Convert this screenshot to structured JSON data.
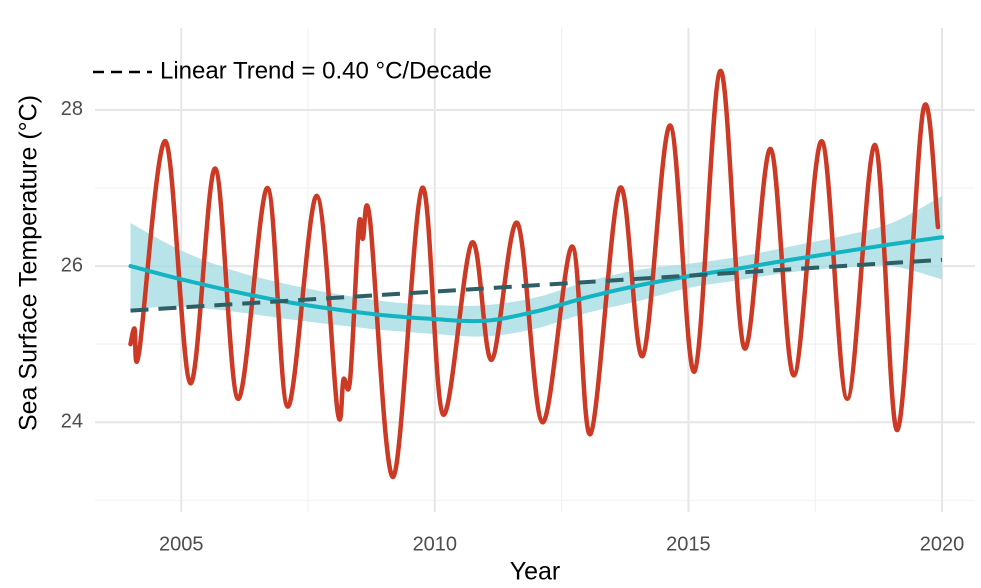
{
  "chart_data": {
    "type": "line",
    "xlabel": "Year",
    "ylabel": "Sea Surface Temperature (°C)",
    "xlim": [
      2003.3,
      2020.65
    ],
    "ylim": [
      22.85,
      29.05
    ],
    "xticks": [
      2005,
      2010,
      2015,
      2020
    ],
    "yticks": [
      24,
      26,
      28
    ],
    "minor_xticks": [
      2007.5,
      2012.5,
      2017.5
    ],
    "minor_yticks": [
      23,
      25,
      27
    ],
    "grid": true,
    "legend": "top-left",
    "band": {
      "color": "#9fd9e1",
      "x": [
        2004,
        2005,
        2006,
        2007,
        2008,
        2009,
        2010,
        2011,
        2012,
        2013,
        2014,
        2015,
        2016,
        2017,
        2018,
        2019,
        2020
      ],
      "lower": [
        25.45,
        25.48,
        25.42,
        25.33,
        25.25,
        25.18,
        25.13,
        25.1,
        25.2,
        25.4,
        25.55,
        25.72,
        25.82,
        25.92,
        25.98,
        26.0,
        25.83
      ],
      "upper": [
        26.55,
        26.2,
        25.95,
        25.78,
        25.65,
        25.55,
        25.5,
        25.5,
        25.6,
        25.8,
        25.95,
        26.03,
        26.12,
        26.25,
        26.38,
        26.55,
        26.9
      ]
    },
    "series": [
      {
        "color": "#cc3a25",
        "width": 4.5,
        "smooth": true,
        "x": [
          2004.0,
          2004.08,
          2004.17,
          2004.69,
          2005.18,
          2005.67,
          2006.12,
          2006.7,
          2007.1,
          2007.67,
          2008.08,
          2008.2,
          2008.33,
          2008.5,
          2008.58,
          2008.72,
          2009.18,
          2009.75,
          2010.16,
          2010.73,
          2011.12,
          2011.63,
          2012.12,
          2012.71,
          2013.07,
          2013.65,
          2014.1,
          2014.64,
          2015.12,
          2015.63,
          2016.1,
          2016.62,
          2017.08,
          2017.63,
          2018.13,
          2018.68,
          2019.12,
          2019.63,
          2019.92
        ],
        "values": [
          25.0,
          25.2,
          24.9,
          27.6,
          24.5,
          27.25,
          24.3,
          27.0,
          24.2,
          26.9,
          24.15,
          24.55,
          24.55,
          26.5,
          26.35,
          26.6,
          23.3,
          27.0,
          24.1,
          26.3,
          24.8,
          26.55,
          24.0,
          26.25,
          23.85,
          27.0,
          24.85,
          27.8,
          24.65,
          28.5,
          24.95,
          27.5,
          24.6,
          27.6,
          24.3,
          27.55,
          23.9,
          28.0,
          26.5
        ]
      },
      {
        "color": "#13b3c2",
        "width": 4,
        "smooth": true,
        "x": [
          2004,
          2005,
          2006,
          2007,
          2008,
          2009,
          2010,
          2011,
          2012,
          2013,
          2014,
          2015,
          2016,
          2017,
          2018,
          2019,
          2020
        ],
        "values": [
          26.0,
          25.83,
          25.68,
          25.55,
          25.45,
          25.37,
          25.32,
          25.3,
          25.42,
          25.6,
          25.75,
          25.87,
          25.97,
          26.08,
          26.18,
          26.28,
          26.37
        ]
      },
      {
        "name": "Linear Trend = 0.40 °C/Decade",
        "color": "#2f5f66",
        "width": 4,
        "dashed": true,
        "x": [
          2004,
          2020
        ],
        "values": [
          25.43,
          26.08
        ]
      }
    ]
  }
}
